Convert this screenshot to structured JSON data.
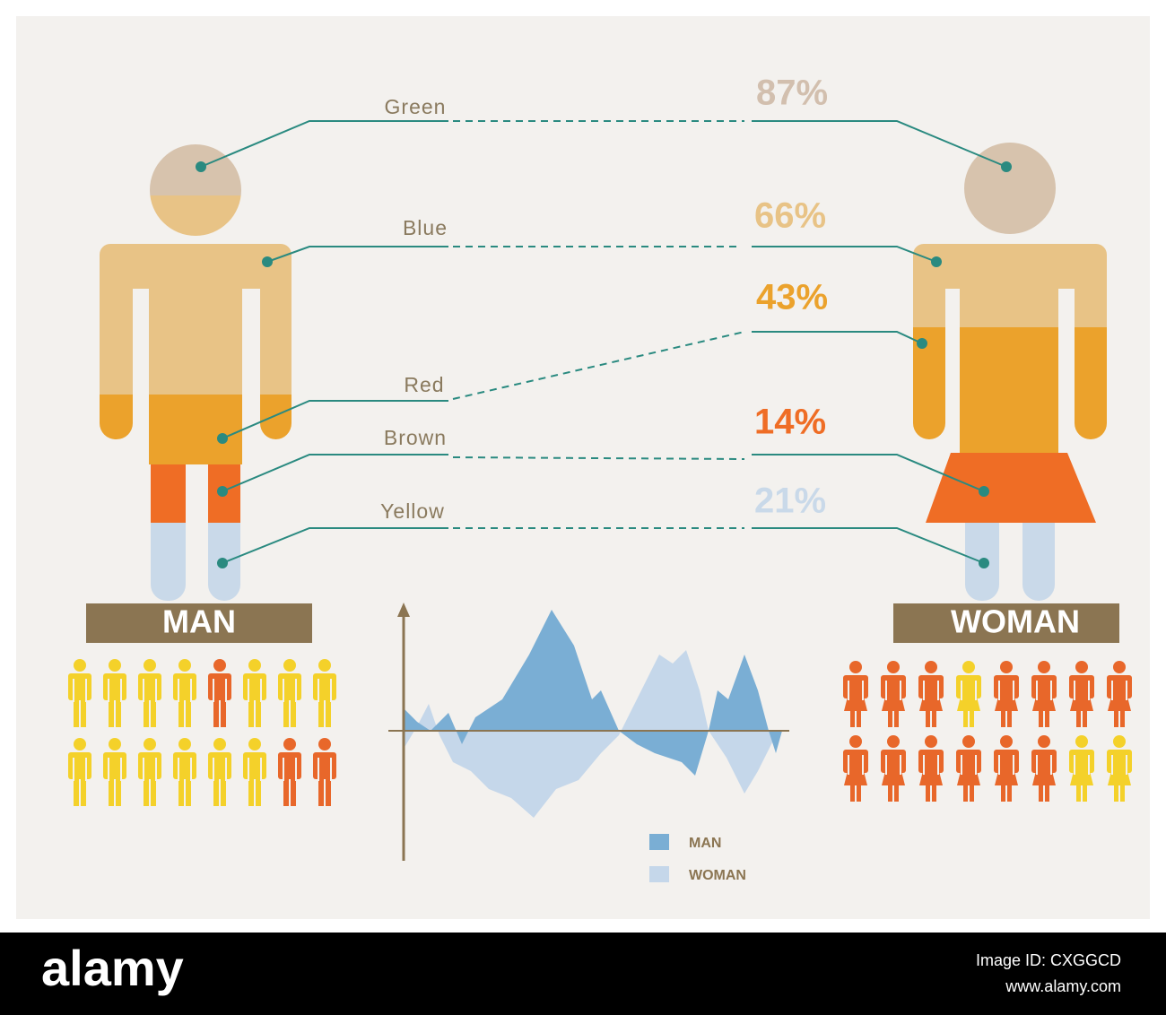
{
  "items": [
    {
      "label": "Green",
      "percent": "87%"
    },
    {
      "label": "Blue",
      "percent": "66%"
    },
    {
      "label": "Red",
      "percent": "43%"
    },
    {
      "label": "Brown",
      "percent": "14%"
    },
    {
      "label": "Yellow",
      "percent": "21%"
    }
  ],
  "man_title": "MAN",
  "woman_title": "WOMAN",
  "legend": [
    "MAN",
    "WOMAN"
  ],
  "footer": {
    "logo": "alamy",
    "image_id": "Image ID: CXGGCD",
    "url": "www.alamy.com"
  }
}
